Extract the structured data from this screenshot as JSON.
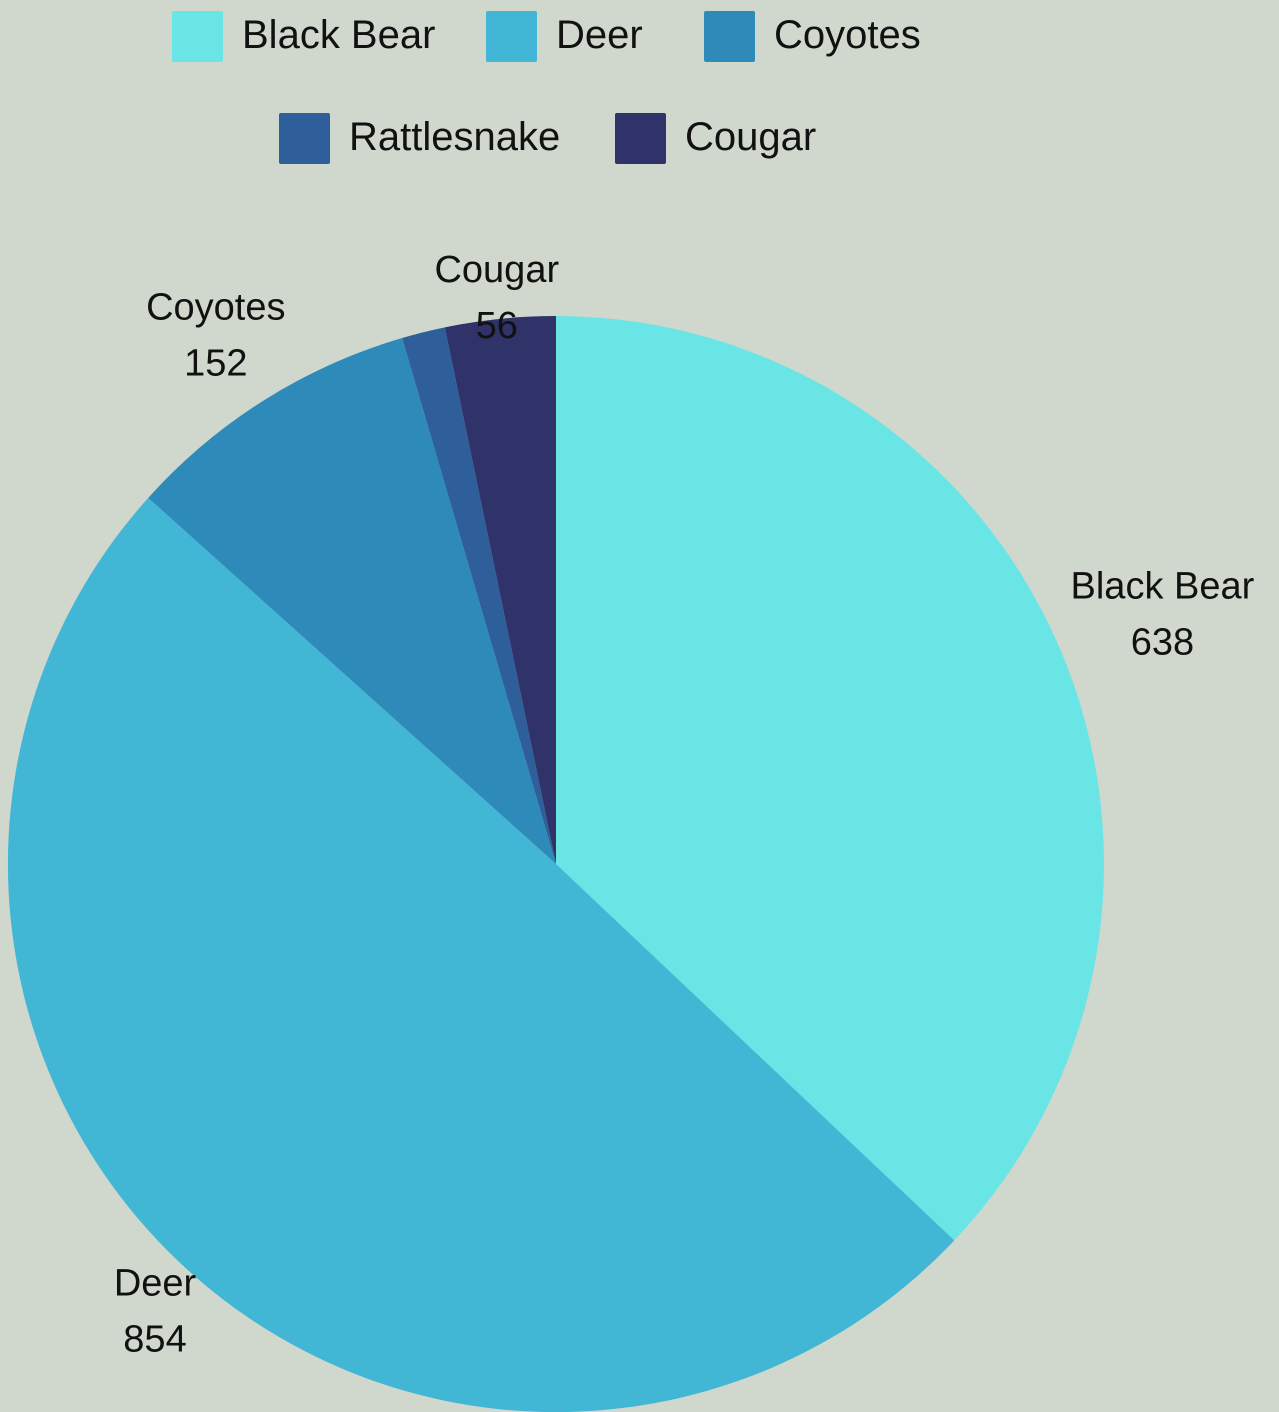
{
  "chart_data": {
    "type": "pie",
    "legend_position": "top",
    "start_angle": "12 o'clock",
    "direction": "clockwise",
    "slices": [
      {
        "label": "Black Bear",
        "value": 638,
        "value_text": "638",
        "color": "#6ae5e6",
        "label_shown": true
      },
      {
        "label": "Deer",
        "value": 854,
        "value_text": "854",
        "color": "#41b6d5",
        "label_shown": true
      },
      {
        "label": "Coyotes",
        "value": 152,
        "value_text": "152",
        "color": "#2e8ab9",
        "label_shown": true
      },
      {
        "label": "Rattlesnake",
        "value": 22,
        "value_text": "",
        "color": "#2e5f9b",
        "label_shown": false
      },
      {
        "label": "Cougar",
        "value": 56,
        "value_text": "56",
        "color": "#30336a",
        "label_shown": true
      }
    ]
  }
}
